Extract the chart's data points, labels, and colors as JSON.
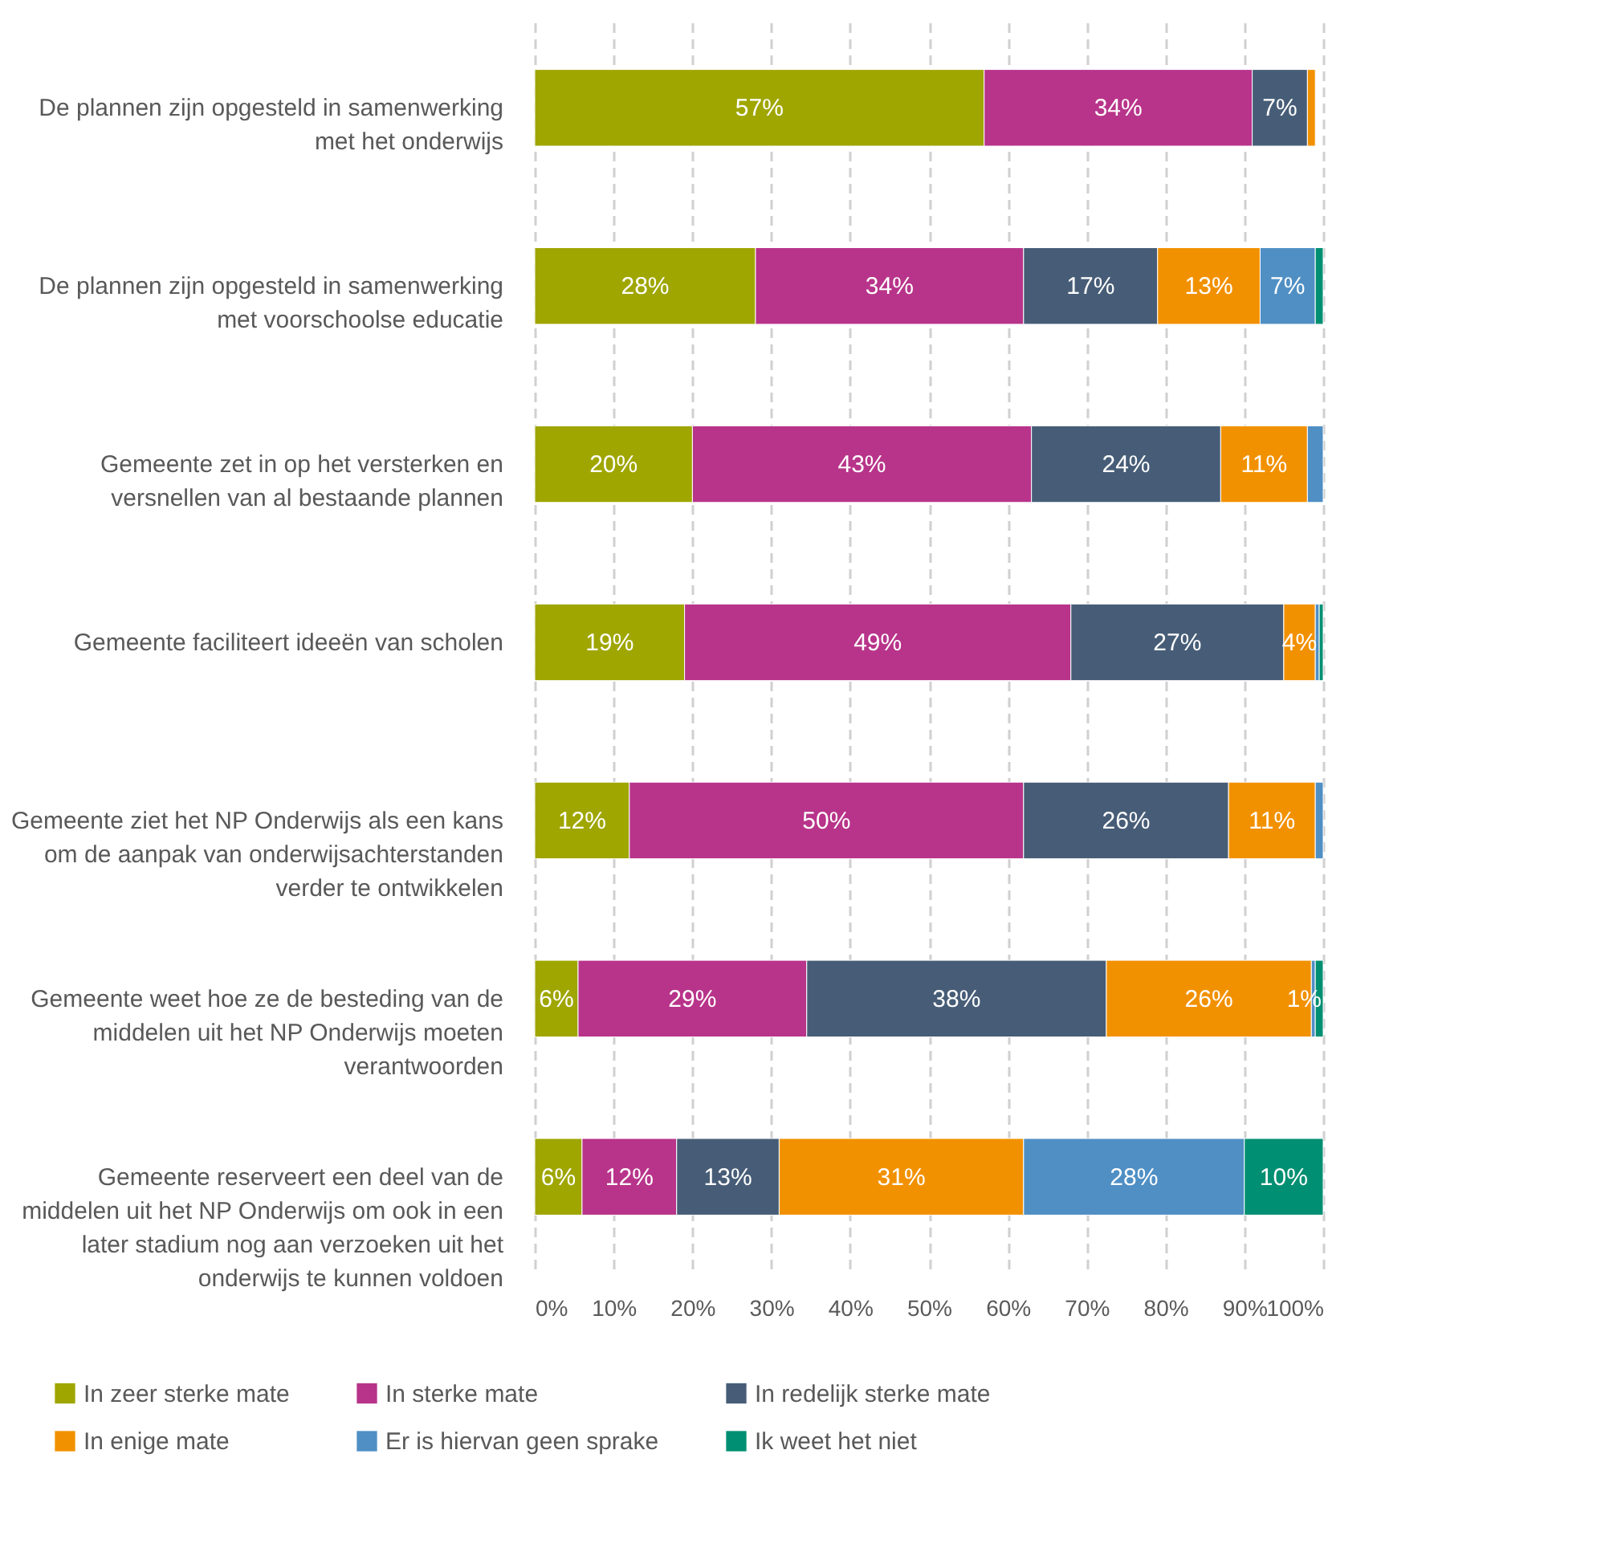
{
  "chart_data": {
    "type": "bar",
    "orientation": "horizontal",
    "stacked": true,
    "categories": [
      "De plannen zijn opgesteld in samenwerking met het onderwijs",
      "De plannen zijn opgesteld in samenwerking met voorschoolse educatie",
      "Gemeente zet in op het versterken en versnellen van al bestaande plannen",
      "Gemeente faciliteert ideeën van scholen",
      "Gemeente ziet het NP Onderwijs als een kans om de aanpak van onderwijsachterstanden verder te ontwikkelen",
      "Gemeente weet hoe ze de besteding van de middelen uit het NP Onderwijs moeten verantwoorden",
      "Gemeente reserveert een deel van de middelen uit het NP Onderwijs om ook in een later stadium nog aan verzoeken uit het onderwijs te kunnen voldoen"
    ],
    "series": [
      {
        "name": "In zeer sterke mate",
        "color": "#9fa600",
        "values": [
          57,
          28,
          20,
          19,
          12,
          5.5,
          6
        ],
        "value_labels": [
          "57%",
          "28%",
          "20%",
          "19%",
          "12%",
          "6%",
          "6%"
        ]
      },
      {
        "name": "In sterke mate",
        "color": "#b8348a",
        "values": [
          34,
          34,
          43,
          49,
          50,
          29,
          12
        ],
        "value_labels": [
          "34%",
          "34%",
          "43%",
          "49%",
          "50%",
          "29%",
          "12%"
        ]
      },
      {
        "name": "In redelijk sterke mate",
        "color": "#475d77",
        "values": [
          7,
          17,
          24,
          27,
          26,
          38,
          13
        ],
        "value_labels": [
          "7%",
          "17%",
          "24%",
          "27%",
          "26%",
          "38%",
          "13%"
        ]
      },
      {
        "name": "In enige mate",
        "color": "#f29100",
        "values": [
          1,
          13,
          11,
          4,
          11,
          26,
          31
        ],
        "value_labels": [
          null,
          "13%",
          "11%",
          "4%",
          "11%",
          "26%",
          "31%"
        ]
      },
      {
        "name": "Er is hiervan geen sprake",
        "color": "#4f8fc4",
        "values": [
          null,
          7,
          2,
          0.5,
          1,
          0.5,
          28
        ],
        "value_labels": [
          null,
          "7%",
          null,
          null,
          null,
          null,
          "28%"
        ]
      },
      {
        "name": "Ik weet het niet",
        "color": "#008f72",
        "values": [
          null,
          1,
          null,
          0.5,
          null,
          1,
          10
        ],
        "value_labels": [
          null,
          null,
          null,
          null,
          null,
          "1%",
          "10%"
        ]
      }
    ],
    "xlim": [
      0,
      100
    ],
    "xticks": [
      {
        "value": 0,
        "label": "0%"
      },
      {
        "value": 10,
        "label": "10%"
      },
      {
        "value": 20,
        "label": "20%"
      },
      {
        "value": 30,
        "label": "30%"
      },
      {
        "value": 40,
        "label": "40%"
      },
      {
        "value": 50,
        "label": "50%"
      },
      {
        "value": 60,
        "label": "60%"
      },
      {
        "value": 70,
        "label": "70%"
      },
      {
        "value": 80,
        "label": "80%"
      },
      {
        "value": 90,
        "label": "90%"
      },
      {
        "value": 100,
        "label": "100%"
      }
    ],
    "grid": "x",
    "legend": "bottom"
  }
}
